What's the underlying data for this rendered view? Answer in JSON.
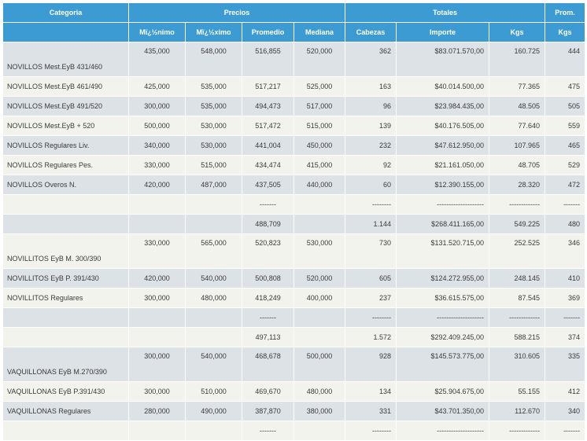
{
  "header": {
    "group_row": [
      "Categoria",
      "Precios",
      "Totales",
      "Prom."
    ],
    "column_row": [
      "Mï¿½nimo",
      "Mï¿½ximo",
      "Promedio",
      "Mediana",
      "Cabezas",
      "Importe",
      "Kgs",
      "Kgs"
    ]
  },
  "table": {
    "rows": [
      [
        "NOVILLOS Mest.EyB 431/460",
        "435,000",
        "548,000",
        "516,855",
        "520,000",
        "362",
        "$83.071.570,00",
        "160.725",
        "444"
      ],
      [
        "NOVILLOS Mest.EyB 461/490",
        "425,000",
        "535,000",
        "517,217",
        "525,000",
        "163",
        "$40.014.500,00",
        "77.365",
        "475"
      ],
      [
        "NOVILLOS Mest.EyB 491/520",
        "300,000",
        "535,000",
        "494,473",
        "517,000",
        "96",
        "$23.984.435,00",
        "48.505",
        "505"
      ],
      [
        "NOVILLOS Mest.EyB + 520",
        "500,000",
        "530,000",
        "517,472",
        "515,000",
        "139",
        "$40.176.505,00",
        "77.640",
        "559"
      ],
      [
        "NOVILLOS Regulares Liv.",
        "340,000",
        "530,000",
        "441,004",
        "450,000",
        "232",
        "$47.612.950,00",
        "107.965",
        "465"
      ],
      [
        "NOVILLOS Regulares Pes.",
        "330,000",
        "515,000",
        "434,474",
        "415,000",
        "92",
        "$21.161.050,00",
        "48.705",
        "529"
      ],
      [
        "NOVILLOS Overos N.",
        "420,000",
        "487,000",
        "437,505",
        "440,000",
        "60",
        "$12.390.155,00",
        "28.320",
        "472"
      ],
      [
        null,
        null,
        null,
        "-------",
        null,
        "--------",
        "--------------------",
        "-------------",
        "-------"
      ],
      [
        null,
        null,
        null,
        "488,709",
        null,
        "1.144",
        "$268.411.165,00",
        "549.225",
        "480"
      ],
      [
        "NOVILLITOS EyB M. 300/390",
        "330,000",
        "565,000",
        "520,823",
        "530,000",
        "730",
        "$131.520.715,00",
        "252.525",
        "346"
      ],
      [
        "NOVILLITOS EyB P. 391/430",
        "420,000",
        "540,000",
        "500,808",
        "520,000",
        "605",
        "$124.272.955,00",
        "248.145",
        "410"
      ],
      [
        "NOVILLITOS Regulares",
        "300,000",
        "480,000",
        "418,249",
        "400,000",
        "237",
        "$36.615.575,00",
        "87.545",
        "369"
      ],
      [
        null,
        null,
        null,
        "-------",
        null,
        "--------",
        "--------------------",
        "-------------",
        "-------"
      ],
      [
        null,
        null,
        null,
        "497,113",
        null,
        "1.572",
        "$292.409.245,00",
        "588.215",
        "374"
      ],
      [
        "VAQUILLONAS EyB M.270/390",
        "300,000",
        "540,000",
        "468,678",
        "500,000",
        "928",
        "$145.573.775,00",
        "310.605",
        "335"
      ],
      [
        "VAQUILLONAS EyB P.391/430",
        "300,000",
        "510,000",
        "469,670",
        "480,000",
        "134",
        "$25.904.675,00",
        "55.155",
        "412"
      ],
      [
        "VAQUILLONAS Regulares",
        "280,000",
        "490,000",
        "387,870",
        "380,000",
        "331",
        "$43.701.350,00",
        "112.670",
        "340"
      ],
      [
        null,
        null,
        null,
        "-------",
        null,
        "--------",
        "--------------------",
        "-------------",
        "-------"
      ]
    ]
  }
}
